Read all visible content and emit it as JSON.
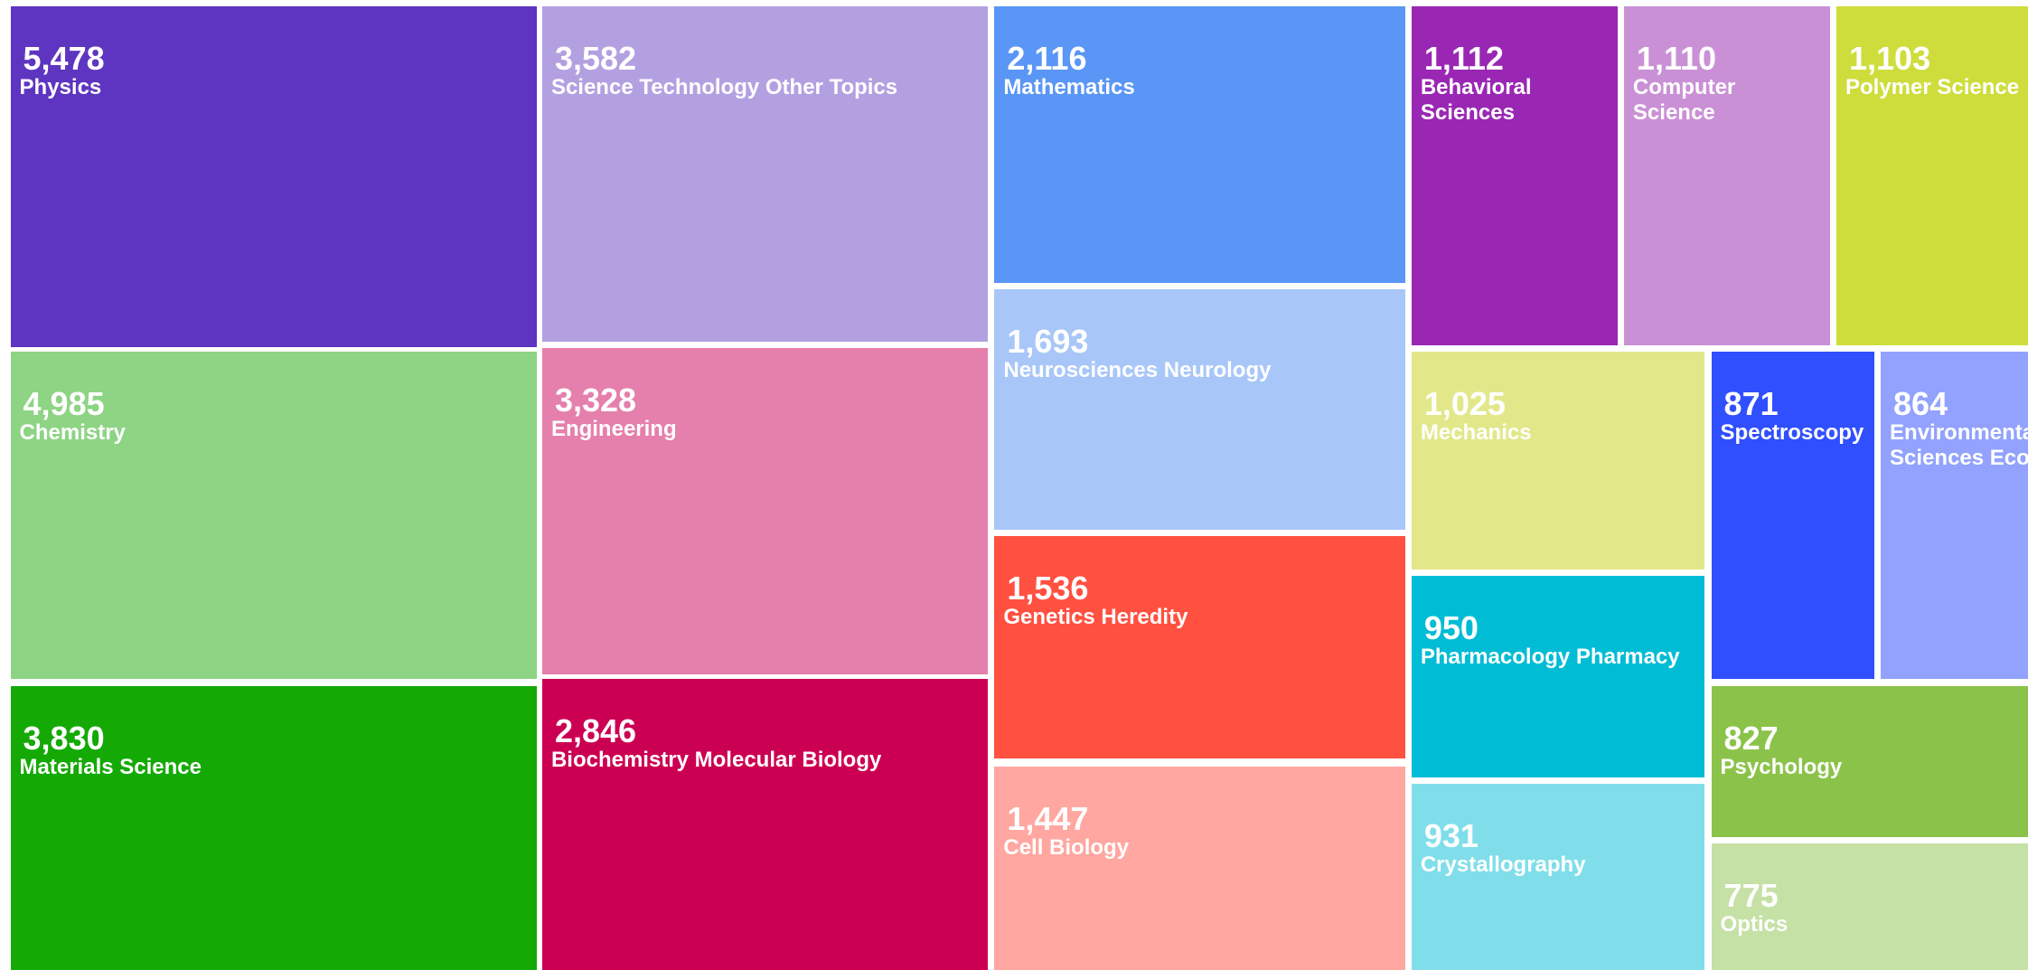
{
  "chart_data": {
    "type": "treemap",
    "categories": [
      "Physics",
      "Chemistry",
      "Materials Science",
      "Science Technology Other Topics",
      "Engineering",
      "Biochemistry Molecular Biology",
      "Mathematics",
      "Neurosciences Neurology",
      "Genetics Heredity",
      "Cell Biology",
      "Behavioral Sciences",
      "Computer Science",
      "Polymer Science",
      "Mechanics",
      "Pharmacology Pharmacy",
      "Crystallography",
      "Spectroscopy",
      "Environmental Sciences Ecology",
      "Psychology",
      "Optics"
    ],
    "values": [
      5478,
      4985,
      3830,
      3582,
      3328,
      2846,
      2116,
      1693,
      1536,
      1447,
      1112,
      1110,
      1103,
      1025,
      950,
      931,
      871,
      864,
      827,
      775
    ],
    "value_labels": [
      "5,478",
      "4,985",
      "3,830",
      "3,582",
      "3,328",
      "2,846",
      "2,116",
      "1,693",
      "1,536",
      "1,447",
      "1,112",
      "1,110",
      "1,103",
      "1,025",
      "950",
      "931",
      "871",
      "864",
      "827",
      "775"
    ],
    "colors": [
      "#5e35c0",
      "#8dd484",
      "#14a905",
      "#b3a0e0",
      "#e57fab",
      "#cc0052",
      "#5a96f5",
      "#a8c7f8",
      "#ff5040",
      "#ffa7a0",
      "#9a27b4",
      "#ca90d6",
      "#cedd3c",
      "#e2e88a",
      "#00bcd4",
      "#80deea",
      "#304ffe",
      "#92a2fe",
      "#8bc34a",
      "#c5e1a5"
    ]
  }
}
